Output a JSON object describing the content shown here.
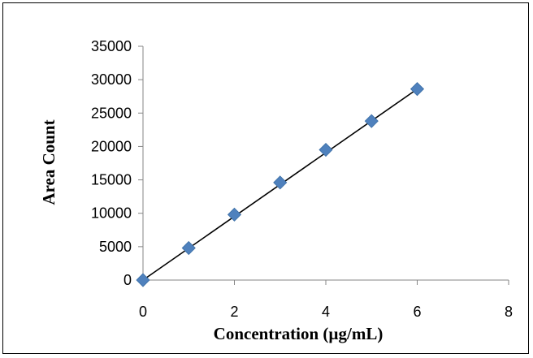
{
  "chart_data": {
    "type": "scatter",
    "xlabel": "Concentration (µg/mL)",
    "ylabel": "Area Count",
    "xlim": [
      0,
      8
    ],
    "ylim": [
      0,
      35000
    ],
    "x_ticks": [
      0,
      2,
      4,
      6,
      8
    ],
    "y_ticks": [
      0,
      5000,
      10000,
      15000,
      20000,
      25000,
      30000,
      35000
    ],
    "grid": false,
    "legend": "none",
    "series": [
      {
        "marker": "diamond",
        "color": "#4f81bd",
        "x": [
          0,
          1,
          2,
          3,
          4,
          5,
          6
        ],
        "y": [
          0,
          4800,
          9800,
          14600,
          19500,
          23800,
          28600
        ]
      }
    ],
    "trendline": {
      "type": "linear",
      "color": "#000000",
      "x": [
        0,
        6
      ],
      "y": [
        0,
        28600
      ]
    }
  }
}
